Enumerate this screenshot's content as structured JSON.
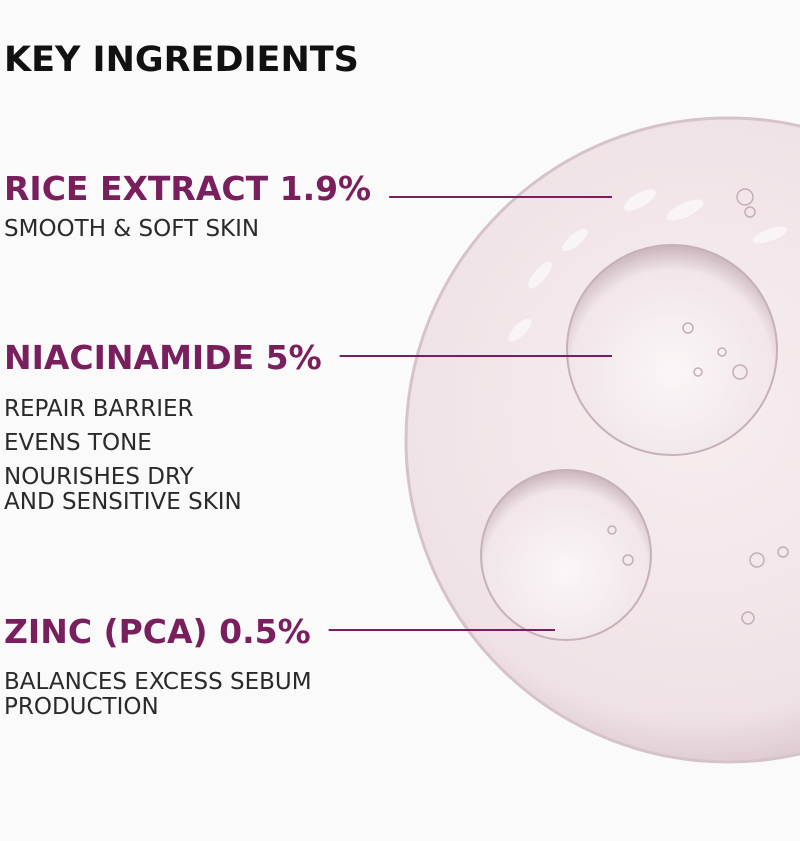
{
  "header": {
    "title": "KEY INGREDIENTS"
  },
  "ingredients": [
    {
      "name": "RICE EXTRACT 1.9%",
      "benefits": [
        [
          "SMOOTH & SOFT SKIN"
        ]
      ]
    },
    {
      "name": "NIACINAMIDE 5%",
      "benefits": [
        [
          "REPAIR BARRIER"
        ],
        [
          "EVENS TONE"
        ],
        [
          "NOURISHES DRY",
          "AND SENSITIVE SKIN"
        ]
      ]
    },
    {
      "name": "ZINC (PCA) 0.5%",
      "benefits": [
        [
          "BALANCES EXCESS SEBUM",
          "PRODUCTION"
        ]
      ]
    }
  ]
}
